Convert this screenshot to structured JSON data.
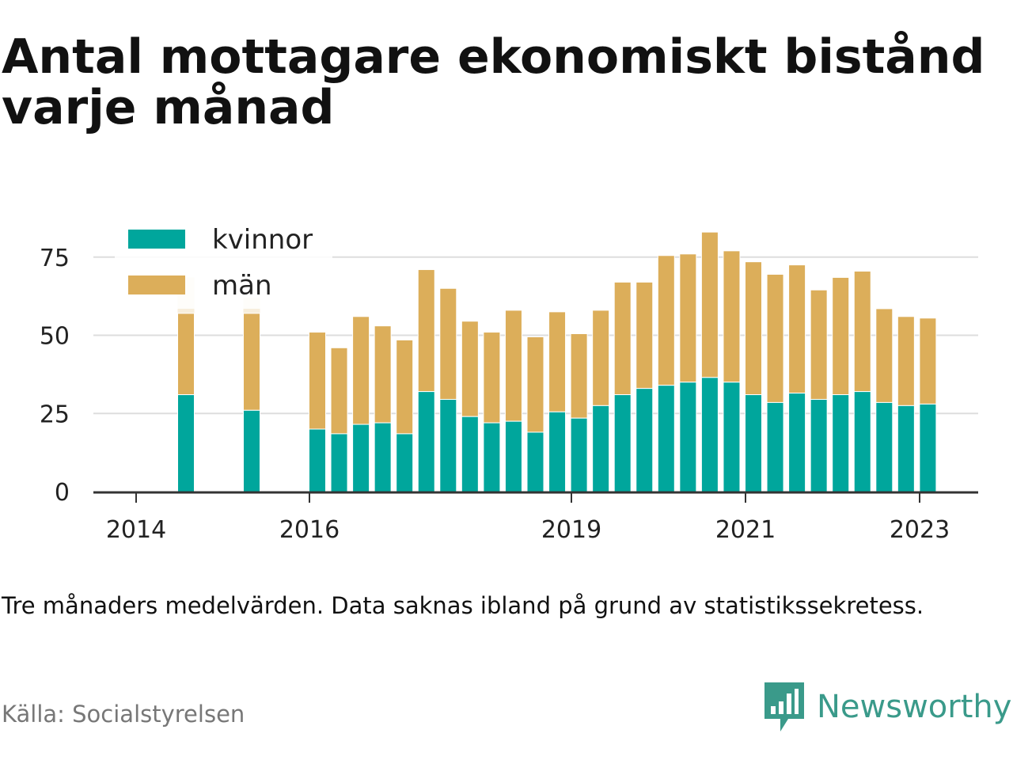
{
  "title": "Antal mottagare ekonomiskt bistånd varje månad",
  "note": "Tre månaders medelvärden. Data saknas ibland på grund av statistikssekretess.",
  "source": "Källa: Socialstyrelsen",
  "brand": {
    "name": "Newsworthy",
    "icon": "bar-chart-logo-icon"
  },
  "colors": {
    "kvinnor": "#00a69c",
    "man": "#dcae5a",
    "man_faded": "#f7eedc",
    "axis": "#333333",
    "grid": "#dddddd"
  },
  "chart_data": {
    "type": "bar",
    "stacked": true,
    "grid": true,
    "legend_position": "top-left",
    "ylim": [
      0,
      85
    ],
    "yticks": [
      0,
      25,
      50,
      75
    ],
    "xtick_labels": [
      "2014",
      "2016",
      "2019",
      "2021",
      "2023"
    ],
    "series": [
      {
        "name": "kvinnor",
        "values": [
          31,
          26,
          20,
          18.5,
          21.5,
          22,
          18.5,
          32,
          29.5,
          24,
          22,
          22.5,
          19,
          25.5,
          23.5,
          27.5,
          31,
          33,
          34,
          35,
          36.5,
          35,
          31,
          28.5,
          31.5,
          29.5,
          31,
          32,
          28.5,
          27.5,
          28
        ]
      },
      {
        "name": "män",
        "values": [
          26,
          31,
          31,
          27.5,
          34.5,
          31,
          30,
          39,
          35.5,
          30.5,
          29,
          35.5,
          30.5,
          32,
          27,
          30.5,
          36,
          34,
          41.5,
          41,
          46.5,
          42,
          42.5,
          41,
          41,
          35,
          37.5,
          38.5,
          30,
          28.5,
          27.5
        ]
      }
    ],
    "faded_extra": [
      11.5,
      5,
      0,
      0,
      0,
      0,
      0,
      0,
      0,
      0,
      0,
      0,
      0,
      0,
      0,
      0,
      0,
      0,
      0,
      0,
      0,
      0,
      0,
      0,
      0,
      0,
      0,
      0,
      0,
      0,
      0
    ]
  }
}
